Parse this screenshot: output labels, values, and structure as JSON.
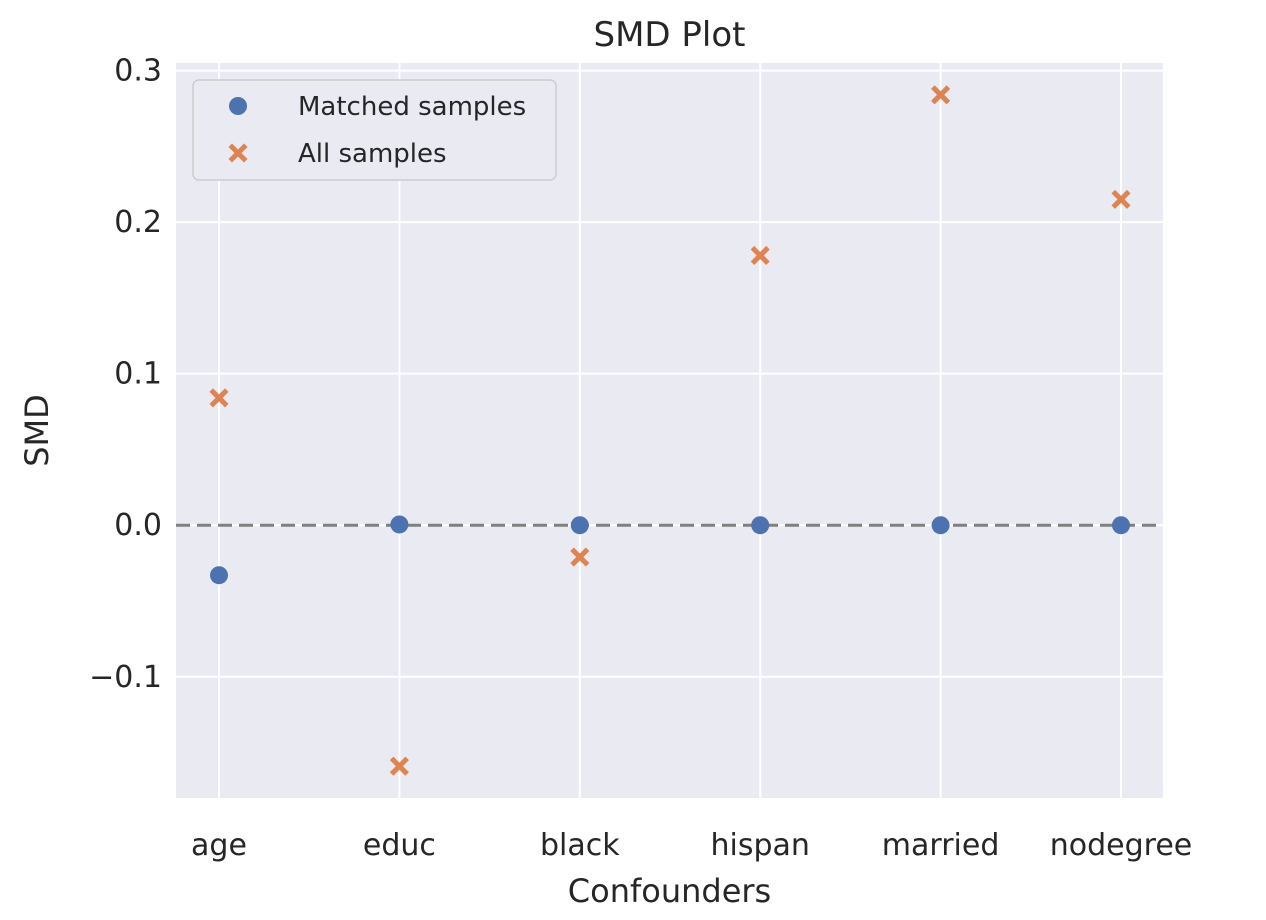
{
  "chart_data": {
    "type": "scatter",
    "title": "SMD Plot",
    "xlabel": "Confounders",
    "ylabel": "SMD",
    "categories": [
      "age",
      "educ",
      "black",
      "hispan",
      "married",
      "nodegree"
    ],
    "ylim": [
      -0.18,
      0.305
    ],
    "yticks": [
      -0.1,
      0.0,
      0.1,
      0.2,
      0.3
    ],
    "ytick_labels": [
      "−0.1",
      "0.0",
      "0.1",
      "0.2",
      "0.3"
    ],
    "grid": true,
    "reference_line": {
      "y": 0.0,
      "style": "dashed",
      "color": "#808080"
    },
    "legend_position": "top-left",
    "series": [
      {
        "name": "Matched samples",
        "marker": "circle",
        "color": "#4c72b0",
        "values": [
          -0.033,
          0.0005,
          0.0,
          0.0,
          0.0,
          0.0
        ]
      },
      {
        "name": "All samples",
        "marker": "x",
        "color": "#dd8452",
        "values": [
          0.084,
          -0.159,
          -0.021,
          0.178,
          0.284,
          0.215
        ]
      }
    ]
  },
  "colors": {
    "plot_background": "#eaeaf2",
    "grid": "#ffffff"
  }
}
